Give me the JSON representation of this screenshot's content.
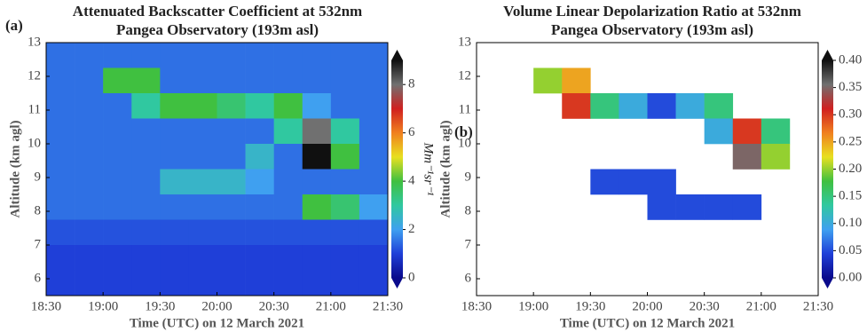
{
  "chart_data": [
    {
      "type": "heatmap",
      "panel_label": "(a)",
      "title": [
        "Attenuated Backscatter Coefficient at 532nm",
        "Pangea Observatory (193m asl)"
      ],
      "x_label": "Time (UTC) on 12 March 2021",
      "y_label": "Altitude (km agl)",
      "colorbar_label": "Mm⁻¹sr⁻¹",
      "colormap": [
        "#0a0a8c",
        "#1f3fd8",
        "#3fa0f0",
        "#30c8a0",
        "#40c040",
        "#e8e020",
        "#f08020",
        "#d02020",
        "#707070",
        "#101010"
      ],
      "xlim": [
        18.5,
        21.5
      ],
      "xticks": [
        {
          "value": 18.5,
          "label": "18:30"
        },
        {
          "value": 19,
          "label": "19:00"
        },
        {
          "value": 19.5,
          "label": "19:30"
        },
        {
          "value": 20,
          "label": "20:00"
        },
        {
          "value": 20.5,
          "label": "20:30"
        },
        {
          "value": 21,
          "label": "21:00"
        },
        {
          "value": 21.5,
          "label": "21:30"
        }
      ],
      "ylim": [
        5.5,
        13
      ],
      "yticks": [
        6,
        7,
        8,
        9,
        10,
        11,
        12,
        13
      ],
      "zlim": [
        0,
        9
      ],
      "zticks": [
        0,
        2,
        4,
        6,
        8
      ],
      "x_edges": [
        18.5,
        18.75,
        19,
        19.25,
        19.5,
        19.75,
        20,
        20.25,
        20.5,
        20.75,
        21,
        21.25,
        21.5
      ],
      "y_edges": [
        13,
        12.25,
        11.5,
        10.75,
        10,
        9.25,
        8.5,
        7.75,
        7,
        6.25,
        5.5
      ],
      "z": [
        [
          1.5,
          1.5,
          1.5,
          1.5,
          1.5,
          1.5,
          1.5,
          1.5,
          1.5,
          1.5,
          1.5,
          1.5
        ],
        [
          1.5,
          1.5,
          4,
          4,
          1.5,
          1.5,
          1.5,
          1.5,
          1.5,
          1.5,
          1.5,
          1.5
        ],
        [
          1.5,
          1.5,
          1.5,
          3,
          4,
          4,
          3.5,
          3,
          4,
          2,
          1.5,
          1.5
        ],
        [
          1.5,
          1.5,
          1.5,
          1.5,
          1.5,
          1.5,
          1.5,
          1.5,
          3,
          8,
          3,
          1.5
        ],
        [
          1.5,
          1.5,
          1.5,
          1.5,
          1.5,
          1.5,
          1.5,
          2.5,
          1.5,
          9,
          4,
          1.5
        ],
        [
          1.5,
          1.5,
          1.5,
          1.5,
          2.5,
          2.5,
          2.5,
          2,
          1.5,
          1.5,
          1.5,
          1.5
        ],
        [
          1.5,
          1.5,
          1.5,
          1.5,
          1.5,
          1.5,
          1.5,
          1.5,
          1.5,
          4,
          3.5,
          2
        ],
        [
          1.2,
          1.2,
          1.2,
          1.2,
          1.2,
          1.2,
          1.2,
          1.2,
          1.2,
          1.2,
          1.2,
          1.2
        ],
        [
          1,
          1,
          1,
          1,
          1,
          1,
          1,
          1,
          1,
          1,
          1,
          1
        ],
        [
          1,
          1,
          1,
          1,
          1,
          1,
          1,
          1,
          1,
          1,
          1,
          1
        ]
      ]
    },
    {
      "type": "heatmap",
      "panel_label": "(b)",
      "title": [
        "Volume Linear Depolarization Ratio at 532nm",
        "Pangea Observatory (193m asl)"
      ],
      "x_label": "Time (UTC) on 12 March 2021",
      "y_label": "Altitude (km agl)",
      "colormap": [
        "#0a0a8c",
        "#1f3fd8",
        "#3fa0f0",
        "#30c8a0",
        "#40c040",
        "#e8e020",
        "#f08020",
        "#d02020",
        "#707070",
        "#101010"
      ],
      "xlim": [
        18.5,
        21.5
      ],
      "xticks": [
        {
          "value": 18.5,
          "label": "18:30"
        },
        {
          "value": 19,
          "label": "19:00"
        },
        {
          "value": 19.5,
          "label": "19:30"
        },
        {
          "value": 20,
          "label": "20:00"
        },
        {
          "value": 20.5,
          "label": "20:30"
        },
        {
          "value": 21,
          "label": "21:00"
        },
        {
          "value": 21.5,
          "label": "21:30"
        }
      ],
      "ylim": [
        5.5,
        13
      ],
      "yticks": [
        6,
        7,
        8,
        9,
        10,
        11,
        12,
        13
      ],
      "zlim": [
        0,
        0.4
      ],
      "zticks": [
        {
          "value": 0,
          "label": "0.00"
        },
        {
          "value": 0.05,
          "label": "0.05"
        },
        {
          "value": 0.1,
          "label": "0.10"
        },
        {
          "value": 0.15,
          "label": "0.15"
        },
        {
          "value": 0.2,
          "label": "0.20"
        },
        {
          "value": 0.25,
          "label": "0.25"
        },
        {
          "value": 0.3,
          "label": "0.30"
        },
        {
          "value": 0.35,
          "label": "0.35"
        },
        {
          "value": 0.4,
          "label": "0.40"
        }
      ],
      "x_edges": [
        18.5,
        18.75,
        19,
        19.25,
        19.5,
        19.75,
        20,
        20.25,
        20.5,
        20.75,
        21,
        21.25,
        21.5
      ],
      "y_edges": [
        13,
        12.25,
        11.5,
        10.75,
        10,
        9.25,
        8.5,
        7.75,
        7,
        6.25,
        5.5
      ],
      "z": [
        [
          null,
          null,
          null,
          null,
          null,
          null,
          null,
          null,
          null,
          null,
          null,
          null
        ],
        [
          null,
          null,
          0.2,
          0.25,
          null,
          null,
          null,
          null,
          null,
          null,
          null,
          null
        ],
        [
          null,
          null,
          null,
          0.3,
          0.15,
          0.1,
          0.05,
          0.1,
          0.15,
          null,
          null,
          null
        ],
        [
          null,
          null,
          null,
          null,
          null,
          null,
          null,
          null,
          0.1,
          0.3,
          0.15,
          null
        ],
        [
          null,
          null,
          null,
          null,
          null,
          null,
          null,
          null,
          null,
          0.35,
          0.2,
          null
        ],
        [
          null,
          null,
          null,
          null,
          0.05,
          0.05,
          0.05,
          null,
          null,
          null,
          null,
          null
        ],
        [
          null,
          null,
          null,
          null,
          null,
          null,
          0.05,
          0.05,
          0.05,
          0.05,
          null,
          null
        ],
        [
          null,
          null,
          null,
          null,
          null,
          null,
          null,
          null,
          null,
          null,
          null,
          null
        ],
        [
          null,
          null,
          null,
          null,
          null,
          null,
          null,
          null,
          null,
          null,
          null,
          null
        ],
        [
          null,
          null,
          null,
          null,
          null,
          null,
          null,
          null,
          null,
          null,
          null,
          null
        ]
      ]
    }
  ]
}
